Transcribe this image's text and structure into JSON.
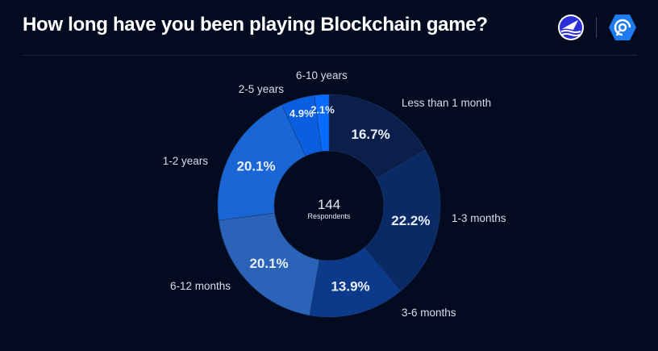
{
  "header": {
    "title": "How long have you been playing Blockchain game?",
    "logos": [
      "wave-logo-icon",
      "hexagon-logo-icon"
    ]
  },
  "chart_data": {
    "type": "pie",
    "variant": "donut",
    "title": "How long have you been playing Blockchain game?",
    "center_value": "144",
    "center_label": "Respondents",
    "categories": [
      "Less than 1 month",
      "1-3 months",
      "3-6 months",
      "6-12 months",
      "1-2 years",
      "2-5 years",
      "6-10 years"
    ],
    "values": [
      16.7,
      22.2,
      13.9,
      20.1,
      20.1,
      4.9,
      2.1
    ],
    "value_labels": [
      "16.7%",
      "22.2%",
      "13.9%",
      "20.1%",
      "20.1%",
      "4.9%",
      "2.1%"
    ],
    "colors": [
      "#0b1f4a",
      "#0a2a66",
      "#0c3a8a",
      "#2a63b8",
      "#1a66d6",
      "#0a5fe0",
      "#0a6cff"
    ]
  }
}
